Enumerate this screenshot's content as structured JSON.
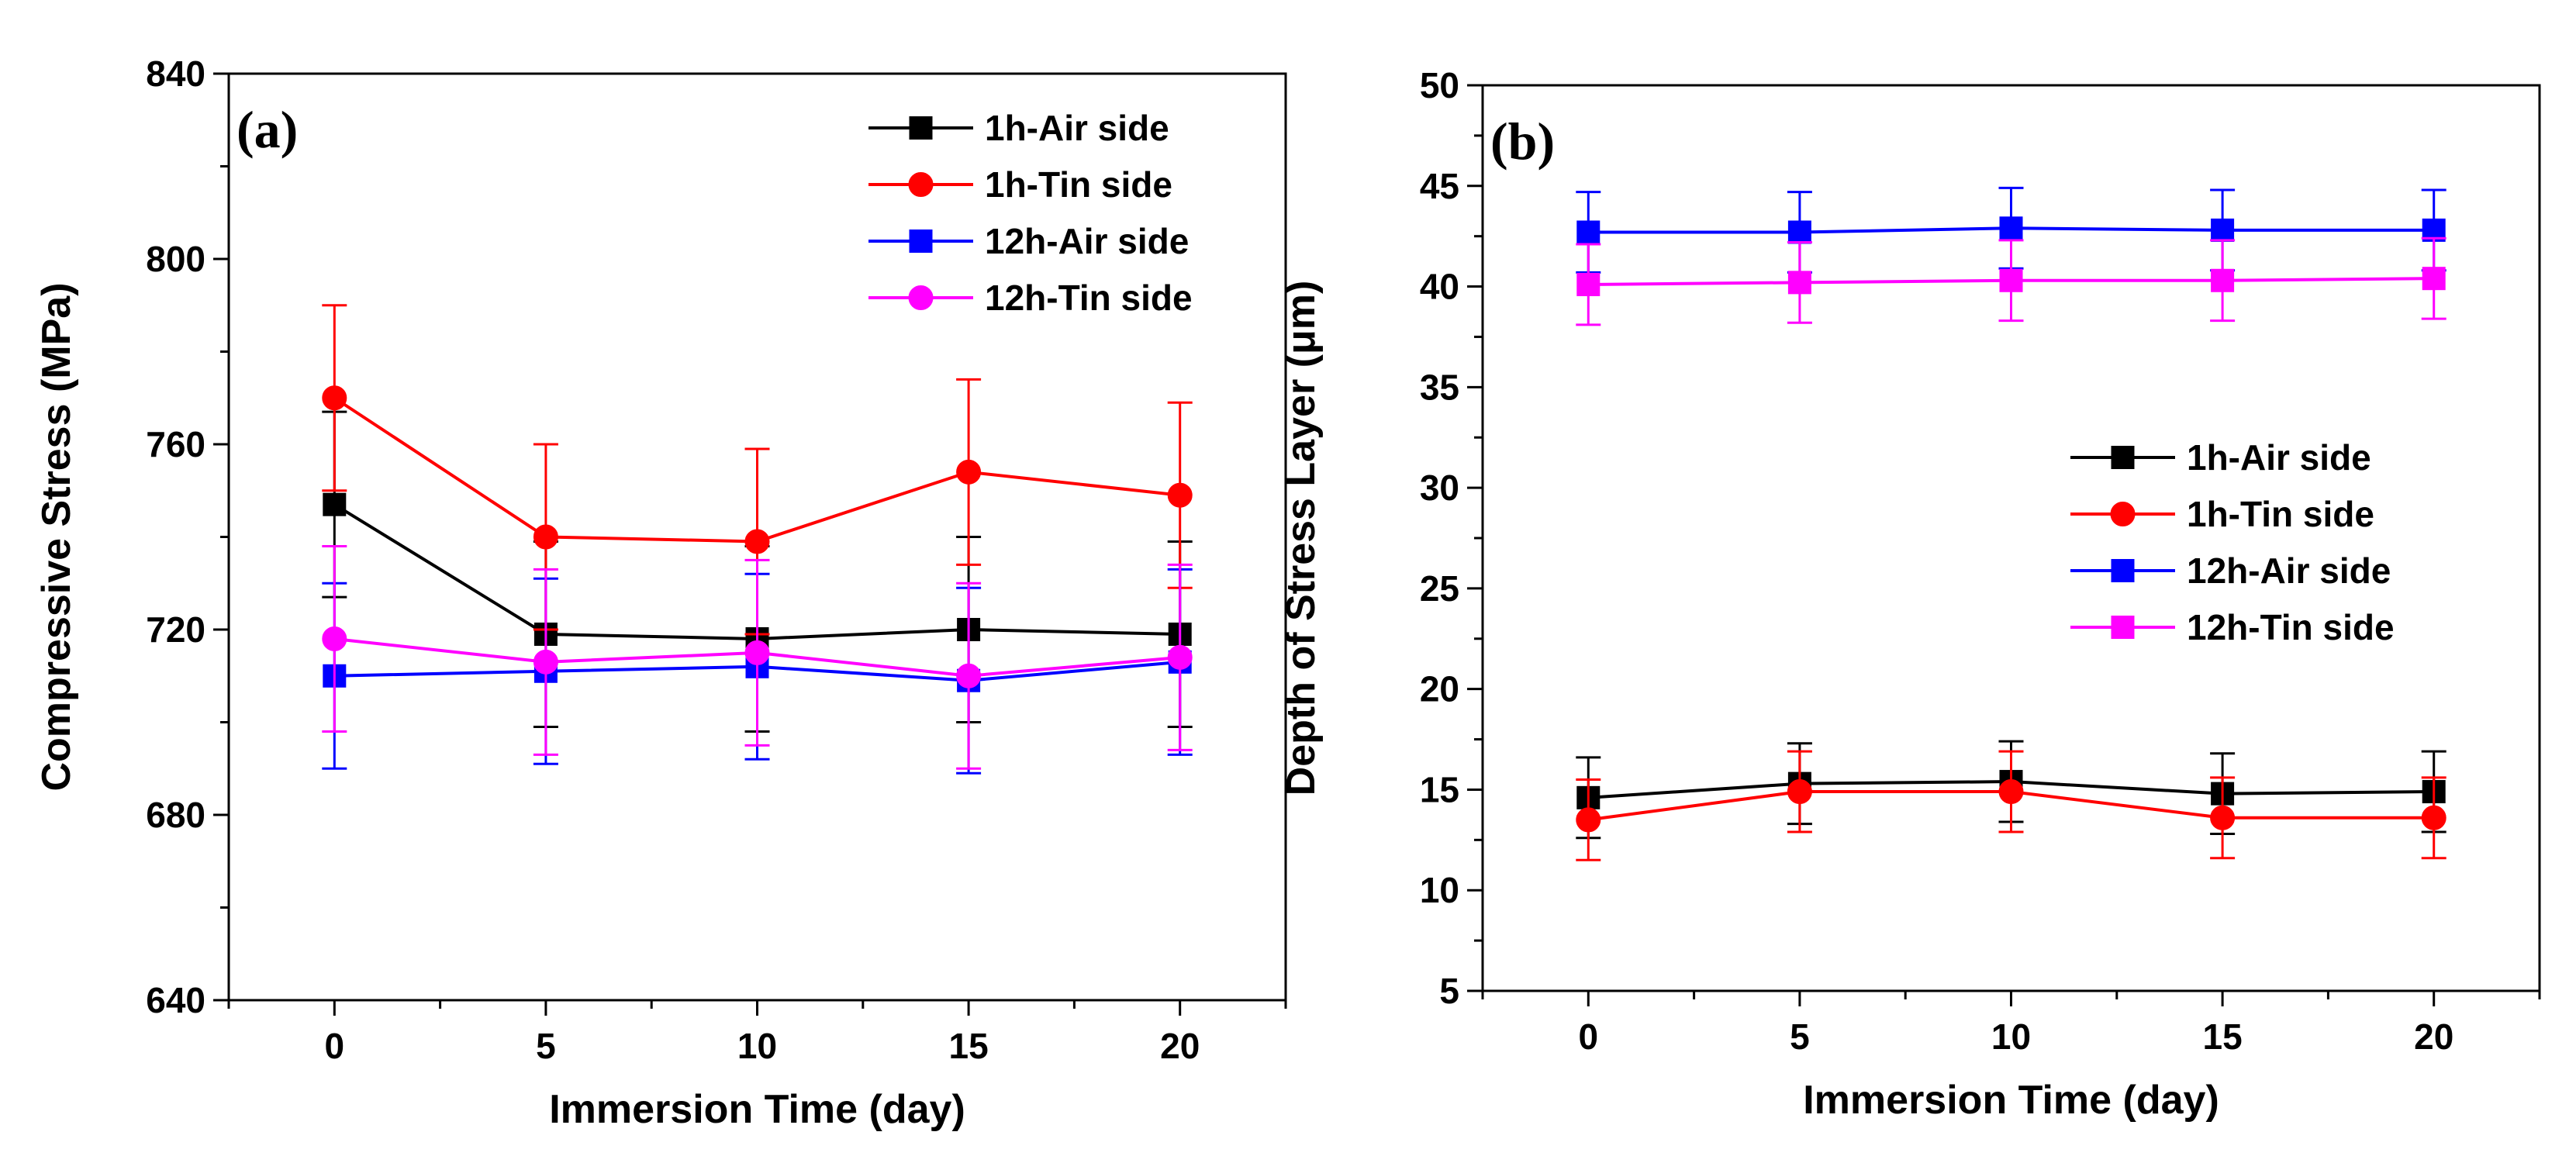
{
  "figure": {
    "panels": [
      "a",
      "b"
    ]
  },
  "chart_data": [
    {
      "type": "line",
      "panel_label": "(a)",
      "xlabel": "Immersion Time (day)",
      "ylabel": "Compressive Stress (MPa)",
      "xlim": [
        -2.5,
        22.5
      ],
      "ylim": [
        640,
        840
      ],
      "xticks": [
        0,
        5,
        10,
        15,
        20
      ],
      "yticks": [
        640,
        680,
        720,
        760,
        800,
        840
      ],
      "legend_position": "top-right",
      "x": [
        0,
        5,
        10,
        15,
        20
      ],
      "series": [
        {
          "name": "1h-Air side",
          "color": "#000000",
          "marker": "square",
          "values": [
            747,
            719,
            718,
            720,
            719
          ],
          "errors": [
            20,
            20,
            20,
            20,
            20
          ]
        },
        {
          "name": "1h-Tin side",
          "color": "#ff0000",
          "marker": "circle",
          "values": [
            770,
            740,
            739,
            754,
            749
          ],
          "errors": [
            20,
            20,
            20,
            20,
            20
          ]
        },
        {
          "name": "12h-Air side",
          "color": "#0000ff",
          "marker": "square",
          "values": [
            710,
            711,
            712,
            709,
            713
          ],
          "errors": [
            20,
            20,
            20,
            20,
            20
          ]
        },
        {
          "name": "12h-Tin side",
          "color": "#ff00ff",
          "marker": "circle",
          "values": [
            718,
            713,
            715,
            710,
            714
          ],
          "errors": [
            20,
            20,
            20,
            20,
            20
          ]
        }
      ]
    },
    {
      "type": "line",
      "panel_label": "(b)",
      "xlabel": "Immersion Time (day)",
      "ylabel": "Depth of Stress Layer (μm)",
      "xlim": [
        -2.5,
        22.5
      ],
      "ylim": [
        5,
        50
      ],
      "xticks": [
        0,
        5,
        10,
        15,
        20
      ],
      "yticks": [
        5,
        10,
        15,
        20,
        25,
        30,
        35,
        40,
        45,
        50
      ],
      "legend_position": "center-right",
      "x": [
        0,
        5,
        10,
        15,
        20
      ],
      "series": [
        {
          "name": "1h-Air side",
          "color": "#000000",
          "marker": "square",
          "values": [
            14.6,
            15.3,
            15.4,
            14.8,
            14.9
          ],
          "errors": [
            2,
            2,
            2,
            2,
            2
          ]
        },
        {
          "name": "1h-Tin side",
          "color": "#ff0000",
          "marker": "circle",
          "values": [
            13.5,
            14.9,
            14.9,
            13.6,
            13.6
          ],
          "errors": [
            2,
            2,
            2,
            2,
            2
          ]
        },
        {
          "name": "12h-Air side",
          "color": "#0000ff",
          "marker": "square",
          "values": [
            42.7,
            42.7,
            42.9,
            42.8,
            42.8
          ],
          "errors": [
            2,
            2,
            2,
            2,
            2
          ]
        },
        {
          "name": "12h-Tin side",
          "color": "#ff00ff",
          "marker": "square",
          "values": [
            40.1,
            40.2,
            40.3,
            40.3,
            40.4
          ],
          "errors": [
            2,
            2,
            2,
            2,
            2
          ]
        }
      ]
    }
  ]
}
